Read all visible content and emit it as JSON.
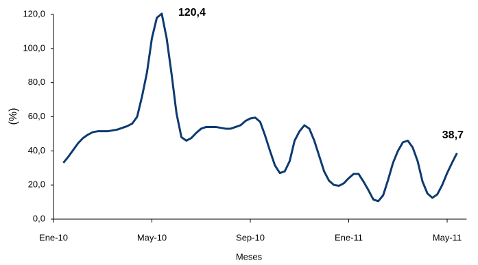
{
  "chart_data": {
    "type": "line",
    "x_label": "Meses",
    "y_label": "(%)",
    "categories": [
      "Ene-10",
      null,
      null,
      null,
      null,
      null,
      null,
      null,
      null,
      null,
      null,
      null,
      null,
      null,
      null,
      null,
      null,
      null,
      null,
      null,
      "May-10",
      null,
      null,
      null,
      null,
      null,
      null,
      null,
      null,
      null,
      null,
      null,
      null,
      null,
      null,
      null,
      null,
      null,
      null,
      null,
      "Sep-10",
      null,
      null,
      null,
      null,
      null,
      null,
      null,
      null,
      null,
      null,
      null,
      null,
      null,
      null,
      null,
      null,
      null,
      null,
      null,
      "Ene-11",
      null,
      null,
      null,
      null,
      null,
      null,
      null,
      null,
      null,
      null,
      null,
      null,
      null,
      null,
      null,
      null,
      null,
      null,
      null,
      "May-11",
      null,
      null
    ],
    "series": [
      {
        "color": "#0e3a70",
        "values": [
          null,
          null,
          33,
          36.5,
          40.5,
          44.5,
          47.5,
          49.5,
          51,
          51.5,
          51.5,
          51.5,
          52,
          52.5,
          53.5,
          54.5,
          56,
          60,
          72,
          86,
          106,
          118,
          120.4,
          106,
          85,
          62,
          48,
          46,
          47.5,
          50.5,
          53,
          54,
          54,
          54,
          53.5,
          53,
          53,
          54,
          55,
          57.5,
          59,
          59.5,
          57,
          49,
          40,
          31.5,
          27,
          28,
          34,
          46,
          51.5,
          55,
          53,
          46,
          37,
          28,
          22.5,
          20,
          19.5,
          21,
          24,
          26.5,
          26.5,
          22,
          17,
          11.5,
          10.5,
          14,
          23,
          33,
          40,
          45,
          46,
          42,
          34,
          22,
          15,
          12.5,
          14.5,
          20,
          27,
          33,
          38.7
        ],
        "value_labels": [
          null,
          null,
          null,
          null,
          null,
          null,
          null,
          null,
          null,
          null,
          null,
          null,
          null,
          null,
          null,
          null,
          null,
          null,
          null,
          null,
          null,
          null,
          "120,4",
          null,
          null,
          null,
          null,
          null,
          null,
          null,
          null,
          null,
          null,
          null,
          null,
          null,
          null,
          null,
          null,
          null,
          null,
          null,
          null,
          null,
          null,
          null,
          null,
          null,
          null,
          null,
          null,
          null,
          null,
          null,
          null,
          null,
          null,
          null,
          null,
          null,
          null,
          null,
          null,
          null,
          null,
          null,
          null,
          null,
          null,
          null,
          null,
          null,
          null,
          null,
          null,
          null,
          null,
          null,
          null,
          null,
          null,
          null,
          "38,7"
        ]
      }
    ],
    "ylim": [
      0,
      120
    ],
    "yticks": [
      {
        "value": 0,
        "label": "0,0"
      },
      {
        "value": 20,
        "label": "20,0"
      },
      {
        "value": 40,
        "label": "40,0"
      },
      {
        "value": 60,
        "label": "60,0"
      },
      {
        "value": 80,
        "label": "80,0"
      },
      {
        "value": 100,
        "label": "100,0"
      },
      {
        "value": 120,
        "label": "120,0"
      }
    ],
    "grid": false
  }
}
